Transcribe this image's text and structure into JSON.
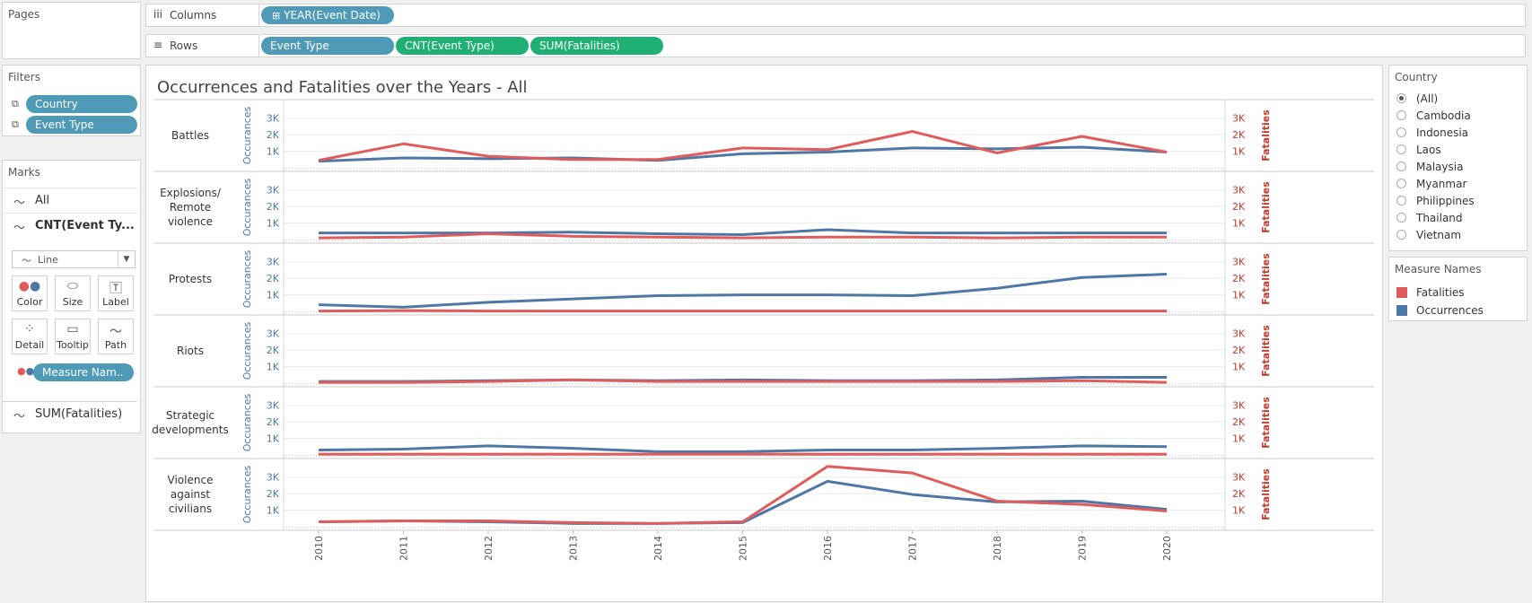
{
  "pages": {
    "title": "Pages"
  },
  "shelves": {
    "columns": {
      "label": "Columns",
      "icon": "iii",
      "pills": [
        "YEAR(Event Date)"
      ]
    },
    "rows": {
      "label": "Rows",
      "icon": "≡",
      "pills": [
        "Event Type",
        "CNT(Event Type)",
        "SUM(Fatalities)"
      ]
    },
    "expand_icon": "⊞"
  },
  "filters": {
    "title": "Filters",
    "items": [
      {
        "label": "Country"
      },
      {
        "label": "Event Type"
      }
    ]
  },
  "marks": {
    "title": "Marks",
    "cards": [
      {
        "label": "All"
      },
      {
        "label": "CNT(Event Ty..."
      }
    ],
    "mark_type": "Line",
    "buttons": [
      {
        "label": "Color"
      },
      {
        "label": "Size"
      },
      {
        "label": "Label"
      },
      {
        "label": "Detail"
      },
      {
        "label": "Tooltip"
      },
      {
        "label": "Path"
      }
    ],
    "color_pill": "Measure Nam..",
    "bottom_card": {
      "label": "SUM(Fatalities)"
    }
  },
  "country_filter": {
    "title": "Country",
    "selected": "(All)",
    "options": [
      "(All)",
      "Cambodia",
      "Indonesia",
      "Laos",
      "Malaysia",
      "Myanmar",
      "Philippines",
      "Thailand",
      "Vietnam"
    ]
  },
  "measure_legend": {
    "title": "Measure Names",
    "items": [
      {
        "label": "Fatalities",
        "color": "#e05c5c"
      },
      {
        "label": "Occurrences",
        "color": "#4e77a5"
      }
    ]
  },
  "chart_data": {
    "type": "line",
    "title": "Occurrences and Fatalities over the Years - All",
    "x": [
      "2010",
      "2011",
      "2012",
      "2013",
      "2014",
      "2015",
      "2016",
      "2017",
      "2018",
      "2019",
      "2020"
    ],
    "left_axis_label": "Occurances",
    "right_axis_label": "Fatalities",
    "ticks": [
      "1K",
      "2K",
      "3K"
    ],
    "ylim": [
      0,
      3800
    ],
    "colors": {
      "occurrences": "#4e77a5",
      "fatalities": "#e05c5c"
    },
    "panels": [
      {
        "label": "Battles",
        "occurrences": [
          400,
          600,
          550,
          600,
          450,
          850,
          950,
          1200,
          1150,
          1250,
          950
        ],
        "fatalities": [
          450,
          1450,
          700,
          500,
          500,
          1200,
          1100,
          2200,
          900,
          1900,
          950
        ]
      },
      {
        "label": "Explosions/ Remote violence",
        "occurrences": [
          400,
          400,
          400,
          450,
          350,
          300,
          600,
          400,
          400,
          400,
          400
        ],
        "fatalities": [
          100,
          150,
          350,
          200,
          150,
          100,
          150,
          150,
          100,
          150,
          150
        ]
      },
      {
        "label": "Protests",
        "occurrences": [
          400,
          250,
          550,
          750,
          950,
          1000,
          1000,
          950,
          1400,
          2050,
          2250
        ],
        "fatalities": [
          20,
          50,
          20,
          20,
          20,
          20,
          20,
          20,
          20,
          20,
          20
        ]
      },
      {
        "label": "Riots",
        "occurrences": [
          100,
          100,
          150,
          200,
          150,
          200,
          150,
          150,
          200,
          350,
          350
        ],
        "fatalities": [
          50,
          50,
          100,
          200,
          100,
          100,
          100,
          100,
          100,
          150,
          50
        ]
      },
      {
        "label": "Strategic developments",
        "occurrences": [
          300,
          350,
          550,
          400,
          200,
          200,
          300,
          300,
          400,
          550,
          500
        ],
        "fatalities": [
          50,
          50,
          50,
          50,
          50,
          50,
          50,
          50,
          50,
          50,
          50
        ]
      },
      {
        "label": "Violence against civilians",
        "occurrences": [
          300,
          350,
          300,
          200,
          200,
          250,
          2750,
          1950,
          1500,
          1550,
          1050
        ],
        "fatalities": [
          300,
          350,
          350,
          250,
          200,
          300,
          3650,
          3250,
          1550,
          1350,
          950
        ]
      }
    ]
  }
}
